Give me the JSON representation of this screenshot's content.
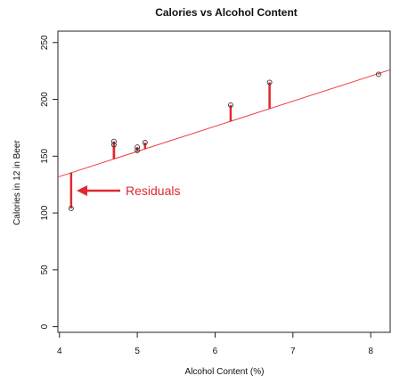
{
  "chart_data": {
    "type": "scatter",
    "title": "Calories vs Alcohol Content",
    "xlabel": "Alcohol Content (%)",
    "ylabel": "Calories in 12 in Beer",
    "xlim": [
      3.98,
      8.25
    ],
    "ylim": [
      -5,
      260
    ],
    "xticks": [
      4,
      5,
      6,
      7,
      8
    ],
    "yticks": [
      0,
      50,
      100,
      150,
      200,
      250
    ],
    "grid": false,
    "points": [
      {
        "x": 4.15,
        "y": 104
      },
      {
        "x": 4.7,
        "y": 163
      },
      {
        "x": 4.7,
        "y": 160
      },
      {
        "x": 5.0,
        "y": 155
      },
      {
        "x": 5.0,
        "y": 158
      },
      {
        "x": 5.1,
        "y": 162
      },
      {
        "x": 6.2,
        "y": 195
      },
      {
        "x": 6.7,
        "y": 215
      },
      {
        "x": 8.1,
        "y": 222
      }
    ],
    "regression_line": {
      "intercept": 43.7,
      "slope": 22.1
    },
    "annotation": "Residuals",
    "colors": {
      "line": "#ee3b3b",
      "residual": "#e0292f",
      "points": "#333333"
    }
  }
}
